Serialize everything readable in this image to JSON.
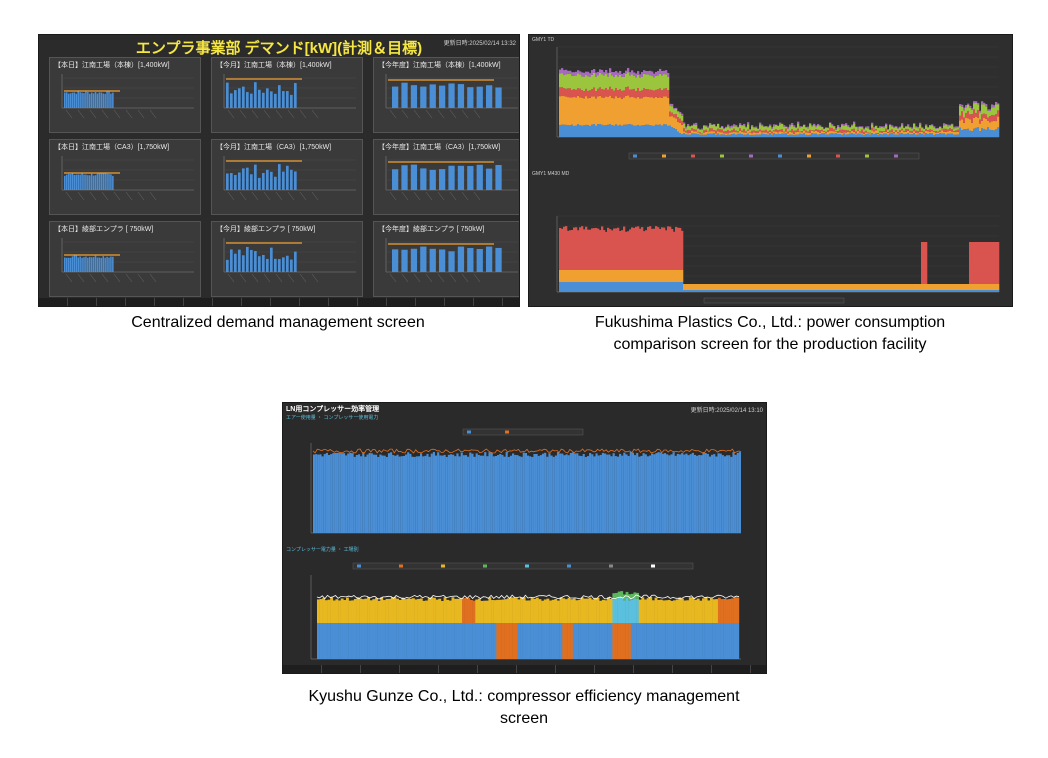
{
  "captions": {
    "demand": "Centralized demand management screen",
    "fukushima": "Fukushima Plastics Co., Ltd.: power consumption comparison screen for the production facility",
    "kyushu": "Kyushu Gunze Co., Ltd.: compressor efficiency management screen"
  },
  "demand_screen": {
    "title": "エンプラ事業部 デマンド[kW](計測＆目標)",
    "updated": "更新日時:2025/02/14 13:32",
    "panels": [
      {
        "title": "【本日】江南工場（本棟）[1,400kW]"
      },
      {
        "title": "【今月】江南工場（本棟）[1,400kW]"
      },
      {
        "title": "【今年度】江南工場（本棟）[1,400kW]"
      },
      {
        "title": "【本日】江南工場（CA3）[1,750kW]"
      },
      {
        "title": "【今月】江南工場（CA3）[1,750kW]"
      },
      {
        "title": "【今年度】江南工場（CA3）[1,750kW]"
      },
      {
        "title": "【本日】綾部エンプラ [ 750kW]"
      },
      {
        "title": "【今月】綾部エンプラ [ 750kW]"
      },
      {
        "title": "【今年度】綾部エンプラ [ 750kW]"
      }
    ],
    "colors": {
      "bar": "#4a8fd6",
      "target": "#f0a030",
      "title": "#f5e642"
    }
  },
  "fukushima_screen": {
    "top_label": "GMY1 TD",
    "bottom_label": "GMY1 M430 MD",
    "colors": [
      "#4a8fd6",
      "#f0a030",
      "#d9534f",
      "#9bc53d",
      "#a569bd"
    ]
  },
  "kyushu_screen": {
    "title": "LN用コンプレッサー効率管理",
    "updated": "更新日時:2025/02/14 13:10",
    "top_section": "エアー使用量 ・ コンプレッサー使用電力",
    "bottom_section": "コンプレッサー電力量 ・ 工場別",
    "colors": {
      "blue": "#4a8fd6",
      "yellow": "#e8b820",
      "orange": "#e07020",
      "green": "#5cb85c",
      "cyan": "#5bc0de"
    }
  }
}
